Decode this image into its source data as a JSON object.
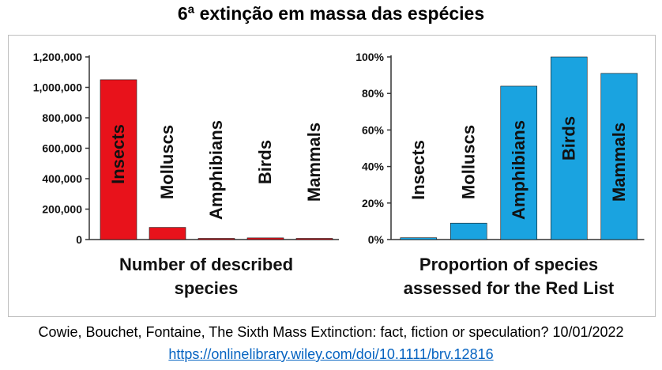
{
  "page": {
    "title": "6ª extinção em massa das espécies",
    "citation": "Cowie, Bouchet, Fontaine, The Sixth Mass Extinction: fact, fiction or speculation? 10/01/2022",
    "link": "https://onlinelibrary.wiley.com/doi/10.1111/brv.12816"
  },
  "colors": {
    "left_bars": "#e8121b",
    "right_bars": "#1aa3e0",
    "bar_stroke": "#1a1a1a"
  },
  "chart_data": [
    {
      "type": "bar",
      "categories": [
        "Insects",
        "Molluscs",
        "Amphibians",
        "Birds",
        "Mammals"
      ],
      "values": [
        1050000,
        80000,
        7500,
        11000,
        6000
      ],
      "title": "Number of described species",
      "ylim": [
        0,
        1200000
      ],
      "yticks": [
        0,
        200000,
        400000,
        600000,
        800000,
        1000000,
        1200000
      ],
      "ytick_labels": [
        "0",
        "200,000",
        "400,000",
        "600,000",
        "800,000",
        "1,000,000",
        "1,200,000"
      ],
      "grid": false
    },
    {
      "type": "bar",
      "categories": [
        "Insects",
        "Molluscs",
        "Amphibians",
        "Birds",
        "Mammals"
      ],
      "values": [
        1,
        9,
        84,
        100,
        91
      ],
      "title": "Proportion of species assessed for the Red List",
      "ylim": [
        0,
        100
      ],
      "yticks": [
        0,
        20,
        40,
        60,
        80,
        100
      ],
      "ytick_labels": [
        "0%",
        "20%",
        "40%",
        "60%",
        "80%",
        "100%"
      ],
      "grid": false
    }
  ]
}
